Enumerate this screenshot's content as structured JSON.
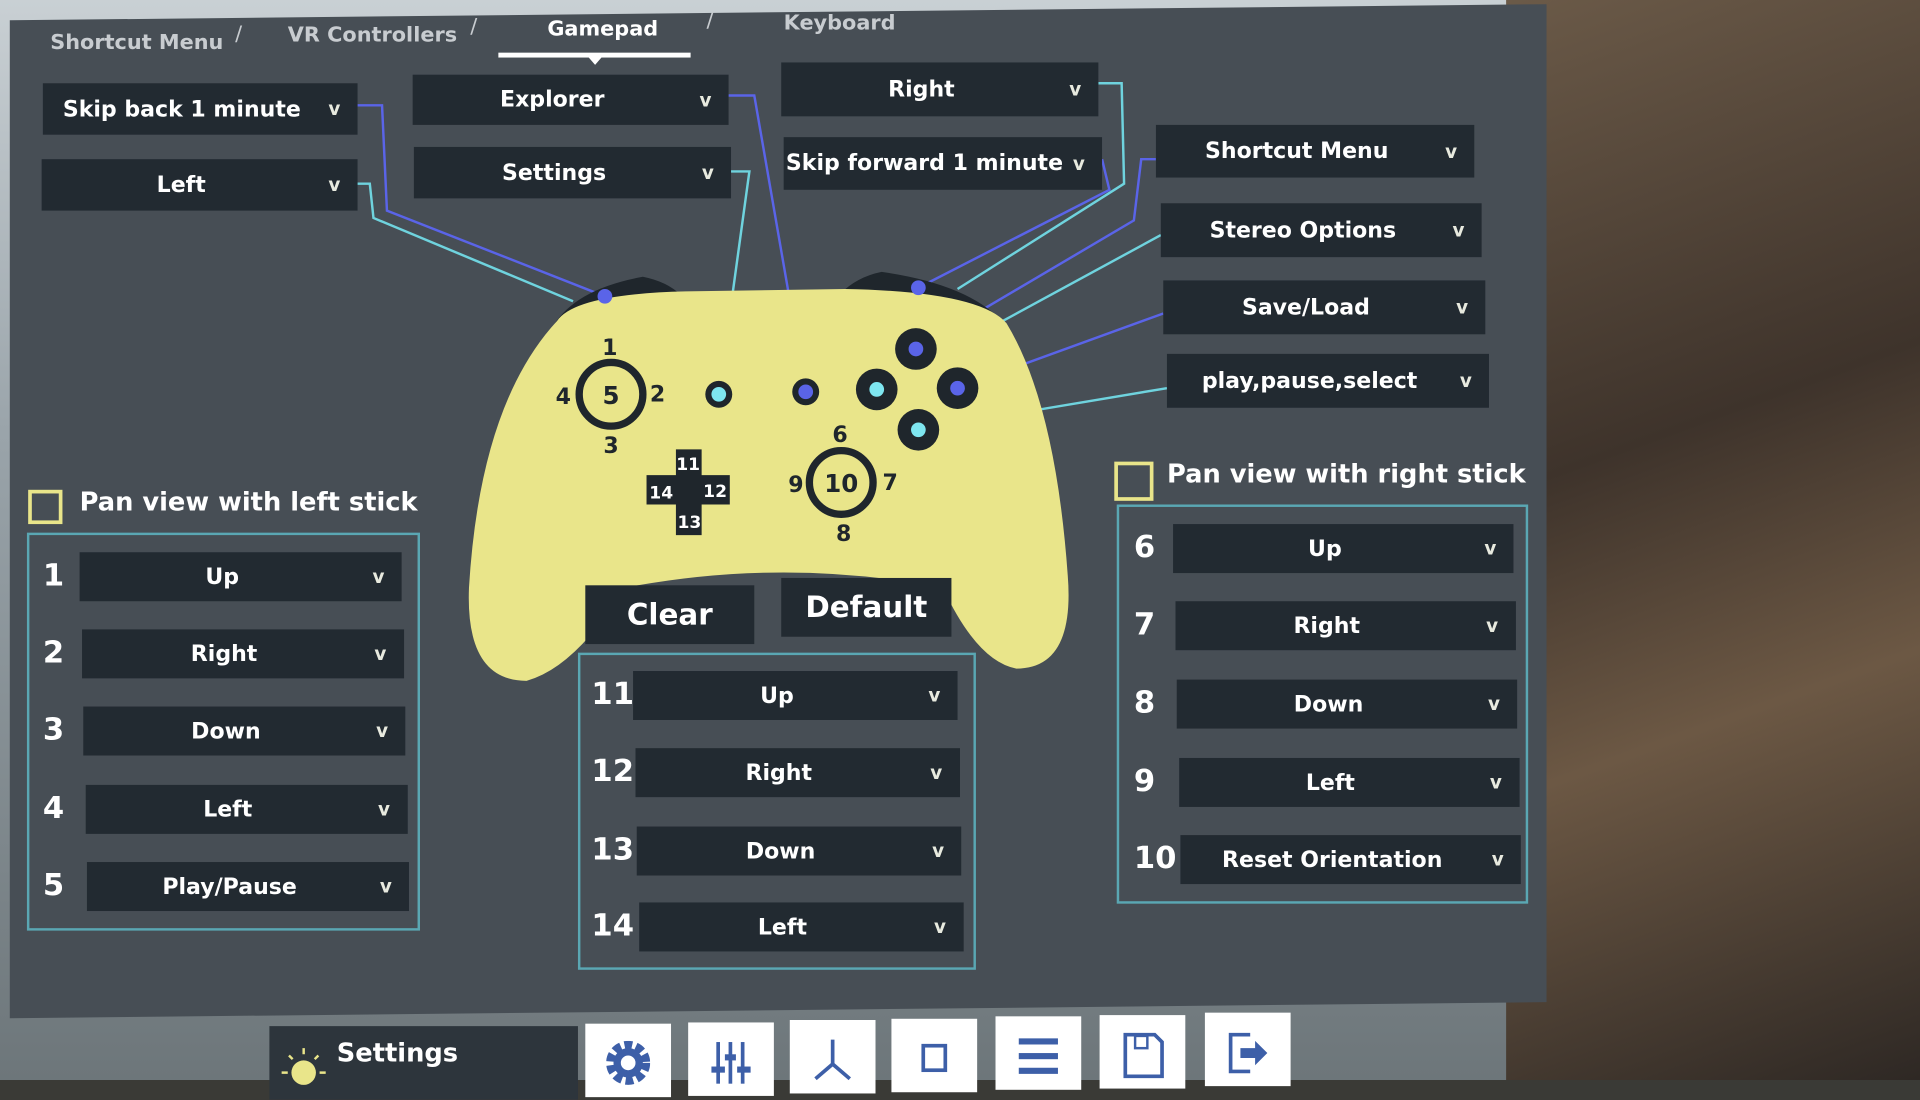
{
  "tabs": [
    {
      "label": "Shortcut Menu"
    },
    {
      "label": "VR Controllers"
    },
    {
      "label": "Gamepad",
      "active": true
    },
    {
      "label": "Keyboard"
    }
  ],
  "tab_separator": "/",
  "top_mappings": {
    "left_bumper": "Skip back 1 minute",
    "left_trigger": "Left",
    "menu_button": "Explorer",
    "view_button": "Settings",
    "right_trigger": "Right",
    "right_bumper": "Skip forward 1 minute",
    "y_button": "Shortcut Menu",
    "x_button": "Stereo Options",
    "b_button": "Save/Load",
    "a_button": "play,pause,select"
  },
  "controller_labels": {
    "ls_up": "1",
    "ls_right": "2",
    "ls_down": "3",
    "ls_left": "4",
    "ls_press": "5",
    "rs_up": "6",
    "rs_right": "7",
    "rs_down": "8",
    "rs_left": "9",
    "rs_press": "10",
    "dp_up": "11",
    "dp_right": "12",
    "dp_down": "13",
    "dp_left": "14"
  },
  "left_stick": {
    "checkbox_label": "Pan view with left stick",
    "checked": false,
    "rows": [
      {
        "num": "1",
        "value": "Up"
      },
      {
        "num": "2",
        "value": "Right"
      },
      {
        "num": "3",
        "value": "Down"
      },
      {
        "num": "4",
        "value": "Left"
      },
      {
        "num": "5",
        "value": "Play/Pause"
      }
    ]
  },
  "dpad": {
    "rows": [
      {
        "num": "11",
        "value": "Up"
      },
      {
        "num": "12",
        "value": "Right"
      },
      {
        "num": "13",
        "value": "Down"
      },
      {
        "num": "14",
        "value": "Left"
      }
    ]
  },
  "right_stick": {
    "checkbox_label": "Pan view with right stick",
    "checked": false,
    "rows": [
      {
        "num": "6",
        "value": "Up"
      },
      {
        "num": "7",
        "value": "Right"
      },
      {
        "num": "8",
        "value": "Down"
      },
      {
        "num": "9",
        "value": "Left"
      },
      {
        "num": "10",
        "value": "Reset Orientation"
      }
    ]
  },
  "buttons": {
    "clear": "Clear",
    "default": "Default"
  },
  "chevron": "v",
  "bottom_bar": {
    "settings_title": "Settings",
    "tools": [
      "gear-icon",
      "sliders-icon",
      "axes-icon",
      "square-icon",
      "menu-icon",
      "save-icon",
      "exit-icon"
    ]
  },
  "colors": {
    "panel": "#474e55",
    "dropdown": "#222a31",
    "controller": "#e9e58a",
    "dot_blue": "#5a64e8",
    "dot_cyan": "#7ee6f0",
    "accent_border": "#5aa7b3",
    "tool_icon": "#3d5fa8"
  }
}
